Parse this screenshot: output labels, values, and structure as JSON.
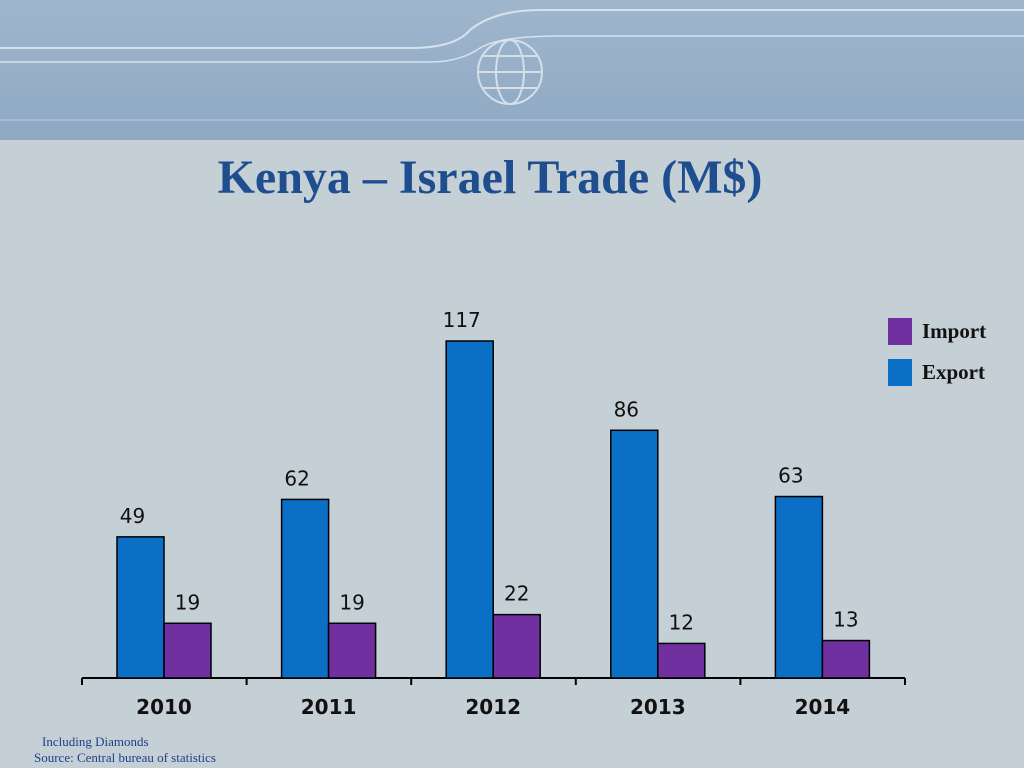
{
  "title": "Kenya – Israel Trade (M$)",
  "footnote": "Including Diamonds",
  "source": "Source: Central bureau of statistics",
  "colors": {
    "export": "#0b6fc6",
    "import": "#7030a0",
    "title": "#1f4e8f",
    "header": "#94adc6"
  },
  "chart_data": {
    "type": "bar",
    "title": "Kenya – Israel Trade (M$)",
    "xlabel": "",
    "ylabel": "",
    "ylim": [
      0,
      117
    ],
    "grid": false,
    "legend_position": "top-right",
    "categories": [
      "2010",
      "2011",
      "2012",
      "2013",
      "2014"
    ],
    "series": [
      {
        "name": "Export",
        "color": "#0b6fc6",
        "values": [
          49,
          62,
          117,
          86,
          63
        ]
      },
      {
        "name": "Import",
        "color": "#7030a0",
        "values": [
          19,
          19,
          22,
          12,
          13
        ]
      }
    ],
    "legend": [
      "Import",
      "Export"
    ]
  }
}
